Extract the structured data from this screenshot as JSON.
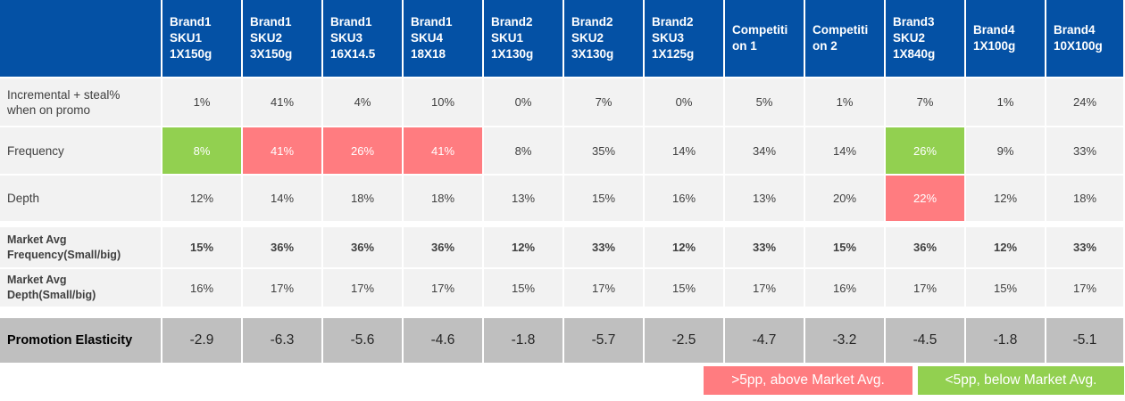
{
  "header": [
    "Brand1\nSKU1\n1X150g",
    "Brand1\nSKU2\n3X150g",
    "Brand1\nSKU3\n16X14.5",
    "Brand1\nSKU4\n18X18",
    "Brand2\nSKU1\n1X130g",
    "Brand2\nSKU2\n3X130g",
    "Brand2\nSKU3\n1X125g",
    "Competiti\non 1",
    "Competiti\non 2",
    "Brand3\nSKU2\n1X840g",
    "Brand4\n1X100g",
    "Brand4\n10X100g"
  ],
  "rows": [
    {
      "label": "Incremental + steal%\nwhen on promo",
      "values": [
        "1%",
        "41%",
        "4%",
        "10%",
        "0%",
        "7%",
        "0%",
        "5%",
        "1%",
        "7%",
        "1%",
        "24%"
      ],
      "highlight": [
        "",
        "",
        "",
        "",
        "",
        "",
        "",
        "",
        "",
        "",
        "",
        ""
      ]
    },
    {
      "label": "Frequency",
      "values": [
        "8%",
        "41%",
        "26%",
        "41%",
        "8%",
        "35%",
        "14%",
        "34%",
        "14%",
        "26%",
        "9%",
        "33%"
      ],
      "highlight": [
        "green",
        "red",
        "red",
        "red",
        "",
        "",
        "",
        "",
        "",
        "green",
        "",
        ""
      ]
    },
    {
      "label": "Depth",
      "values": [
        "12%",
        "14%",
        "18%",
        "18%",
        "13%",
        "15%",
        "16%",
        "13%",
        "20%",
        "22%",
        "12%",
        "18%"
      ],
      "highlight": [
        "",
        "",
        "",
        "",
        "",
        "",
        "",
        "",
        "",
        "red",
        "",
        ""
      ]
    },
    {
      "label": "Market Avg\nFrequency(Small/big)",
      "values": [
        "15%",
        "36%",
        "36%",
        "36%",
        "12%",
        "33%",
        "12%",
        "33%",
        "15%",
        "36%",
        "12%",
        "33%"
      ],
      "highlight": [
        "",
        "",
        "",
        "",
        "",
        "",
        "",
        "",
        "",
        "",
        "",
        ""
      ]
    },
    {
      "label": "Market Avg\nDepth(Small/big)",
      "values": [
        "16%",
        "17%",
        "17%",
        "17%",
        "15%",
        "17%",
        "15%",
        "17%",
        "16%",
        "17%",
        "15%",
        "17%"
      ],
      "highlight": [
        "",
        "",
        "",
        "",
        "",
        "",
        "",
        "",
        "",
        "",
        "",
        ""
      ]
    }
  ],
  "elasticity": {
    "label": "Promotion  Elasticity",
    "values": [
      "-2.9",
      "-6.3",
      "-5.6",
      "-4.6",
      "-1.8",
      "-5.7",
      "-2.5",
      "-4.7",
      "-3.2",
      "-4.5",
      "-1.8",
      "-5.1"
    ]
  },
  "legend": {
    "above": ">5pp, above Market Avg.",
    "below": "<5pp, below Market Avg."
  },
  "colors": {
    "header": "#0451a5",
    "above": "#ff7c80",
    "below": "#92d050",
    "elasticity_bg": "#bfbfbf"
  }
}
